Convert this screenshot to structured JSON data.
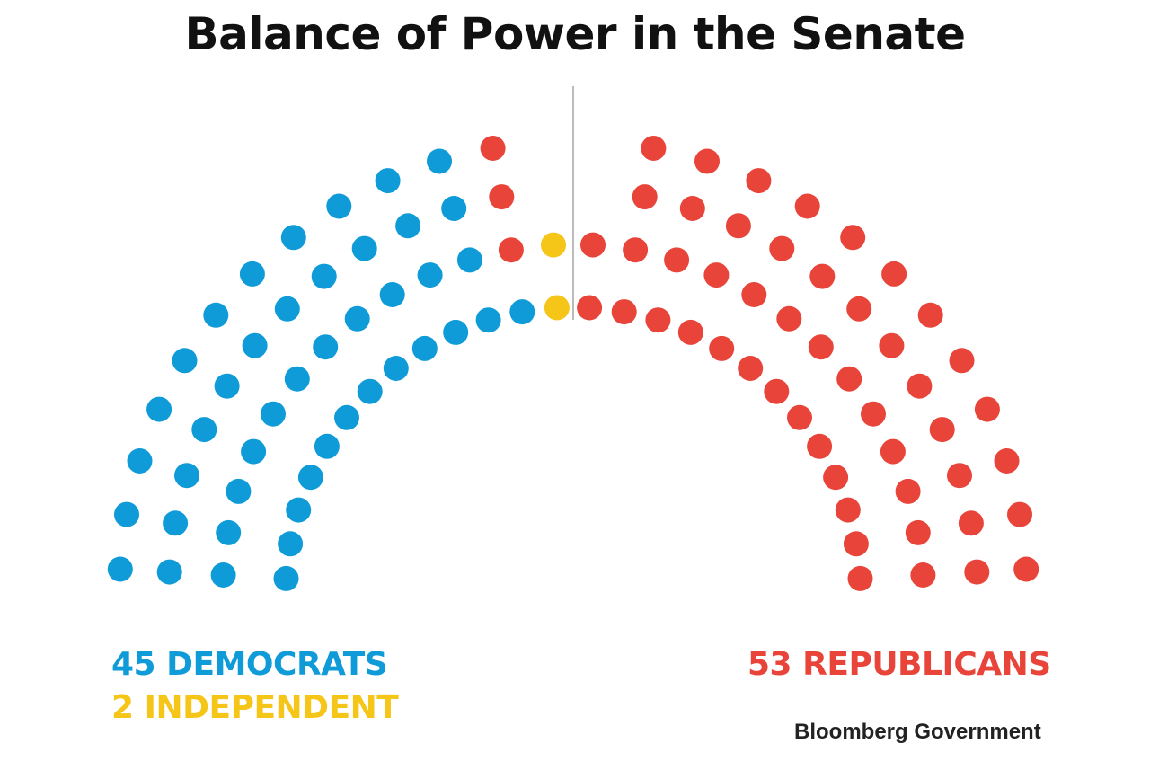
{
  "title": "Balance of Power in the Senate",
  "chart_data": {
    "type": "parliament",
    "total_seats": 100,
    "series": [
      {
        "name": "DEMOCRATS",
        "value": 45,
        "label": "45 DEMOCRATS",
        "color": "#0e9bd8"
      },
      {
        "name": "INDEPENDENT",
        "value": 2,
        "label": "2 INDEPENDENT",
        "color": "#f5c518"
      },
      {
        "name": "REPUBLICANS",
        "value": 53,
        "label": "53 REPUBLICANS",
        "color": "#e8443a"
      }
    ],
    "divider_color": "#bbbbbb"
  },
  "source": "Bloomberg Government"
}
